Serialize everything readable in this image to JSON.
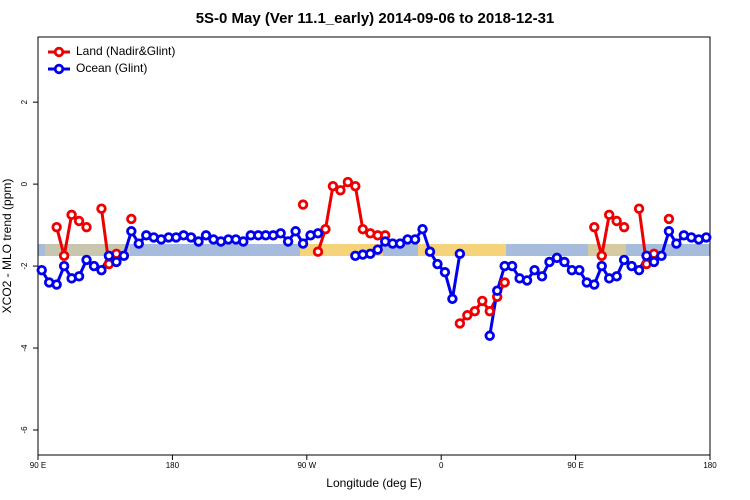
{
  "chart_data": {
    "type": "line",
    "title": "5S-0 May (Ver 11.1_early)   2014-09-06 to 2018-12-31",
    "x_label": "Longitude (deg E)",
    "y_label": "XCO2 - MLO trend (ppm)",
    "x": [
      92.5,
      97.5,
      102.5,
      107.5,
      112.5,
      117.5,
      122.5,
      127.5,
      132.5,
      137.5,
      142.5,
      147.5,
      152.5,
      157.5,
      162.5,
      167.5,
      172.5,
      177.5,
      182.5,
      187.5,
      192.5,
      197.5,
      202.5,
      207.5,
      212.5,
      217.5,
      222.5,
      227.5,
      232.5,
      237.5,
      242.5,
      247.5,
      252.5,
      257.5,
      262.5,
      267.5,
      272.5,
      277.5,
      282.5,
      287.5,
      292.5,
      297.5,
      302.5,
      307.5,
      312.5,
      317.5,
      322.5,
      327.5,
      332.5,
      337.5,
      342.5,
      347.5,
      352.5,
      357.5,
      362.5,
      367.5,
      372.5,
      377.5,
      382.5,
      387.5,
      392.5,
      397.5,
      402.5,
      407.5,
      412.5,
      417.5,
      422.5,
      427.5,
      432.5,
      437.5,
      442.5,
      447.5,
      452.5,
      457.5,
      462.5,
      467.5,
      472.5,
      477.5,
      482.5,
      487.5,
      492.5,
      497.5,
      502.5,
      507.5,
      512.5,
      517.5,
      522.5,
      527.5,
      532.5,
      537.5
    ],
    "series": [
      {
        "name": "Land (Nadir&Glint)",
        "color": "#ee0000",
        "values": [
          null,
          null,
          -1.05,
          -1.75,
          -0.75,
          -0.9,
          -1.05,
          null,
          -0.6,
          -1.95,
          -1.7,
          null,
          -0.85,
          null,
          null,
          null,
          null,
          null,
          null,
          null,
          null,
          null,
          null,
          null,
          null,
          null,
          null,
          null,
          null,
          null,
          null,
          null,
          null,
          null,
          null,
          -0.5,
          null,
          -1.65,
          -1.1,
          -0.05,
          -0.15,
          0.05,
          -0.05,
          -1.1,
          -1.2,
          -1.25,
          -1.25,
          null,
          null,
          null,
          null,
          null,
          null,
          null,
          null,
          null,
          -3.4,
          -3.2,
          -3.1,
          -2.85,
          -3.1,
          -2.75,
          -2.4,
          null,
          null,
          null,
          null,
          null,
          null,
          null,
          null,
          null,
          null,
          null,
          -1.05,
          -1.75,
          -0.75,
          -0.9,
          -1.05,
          null,
          -0.6,
          -1.95,
          -1.7,
          null,
          -0.85,
          null,
          null,
          null,
          null,
          null
        ]
      },
      {
        "name": "Ocean (Glint)",
        "color": "#0000ee",
        "values": [
          -2.1,
          -2.4,
          -2.45,
          -2.0,
          -2.3,
          -2.25,
          -1.85,
          -2.0,
          -2.1,
          -1.75,
          -1.9,
          -1.75,
          -1.15,
          -1.45,
          -1.25,
          -1.3,
          -1.35,
          -1.3,
          -1.3,
          -1.25,
          -1.3,
          -1.4,
          -1.25,
          -1.35,
          -1.4,
          -1.35,
          -1.35,
          -1.4,
          -1.25,
          -1.25,
          -1.25,
          -1.25,
          -1.2,
          -1.4,
          -1.15,
          -1.45,
          -1.25,
          -1.2,
          null,
          null,
          null,
          null,
          -1.75,
          -1.72,
          -1.7,
          -1.6,
          -1.4,
          -1.45,
          -1.45,
          -1.35,
          -1.35,
          -1.1,
          -1.65,
          -1.95,
          -2.15,
          -2.8,
          -1.7,
          null,
          null,
          null,
          -3.7,
          -2.6,
          -2.0,
          -2.0,
          -2.3,
          -2.35,
          -2.1,
          -2.25,
          -1.9,
          -1.8,
          -1.9,
          -2.1,
          -2.1,
          -2.4,
          -2.45,
          -2.0,
          -2.3,
          -2.25,
          -1.85,
          -2.0,
          -2.1,
          -1.75,
          -1.9,
          -1.75,
          -1.15,
          -1.45,
          -1.25,
          -1.3,
          -1.35,
          -1.3
        ]
      }
    ],
    "xlim": [
      90,
      540
    ],
    "xticks": [
      {
        "value": 90,
        "label": "90 E"
      },
      180,
      {
        "value": 270,
        "label": "90 W"
      },
      {
        "value": 360,
        "label": "0"
      },
      {
        "value": 450,
        "label": "90 E"
      },
      {
        "value": 540,
        "label": "180"
      }
    ],
    "ylim": [
      -6.61,
      3.59
    ],
    "yticks": [
      -6,
      -4,
      -2,
      0,
      2
    ],
    "legend": "topleft"
  }
}
